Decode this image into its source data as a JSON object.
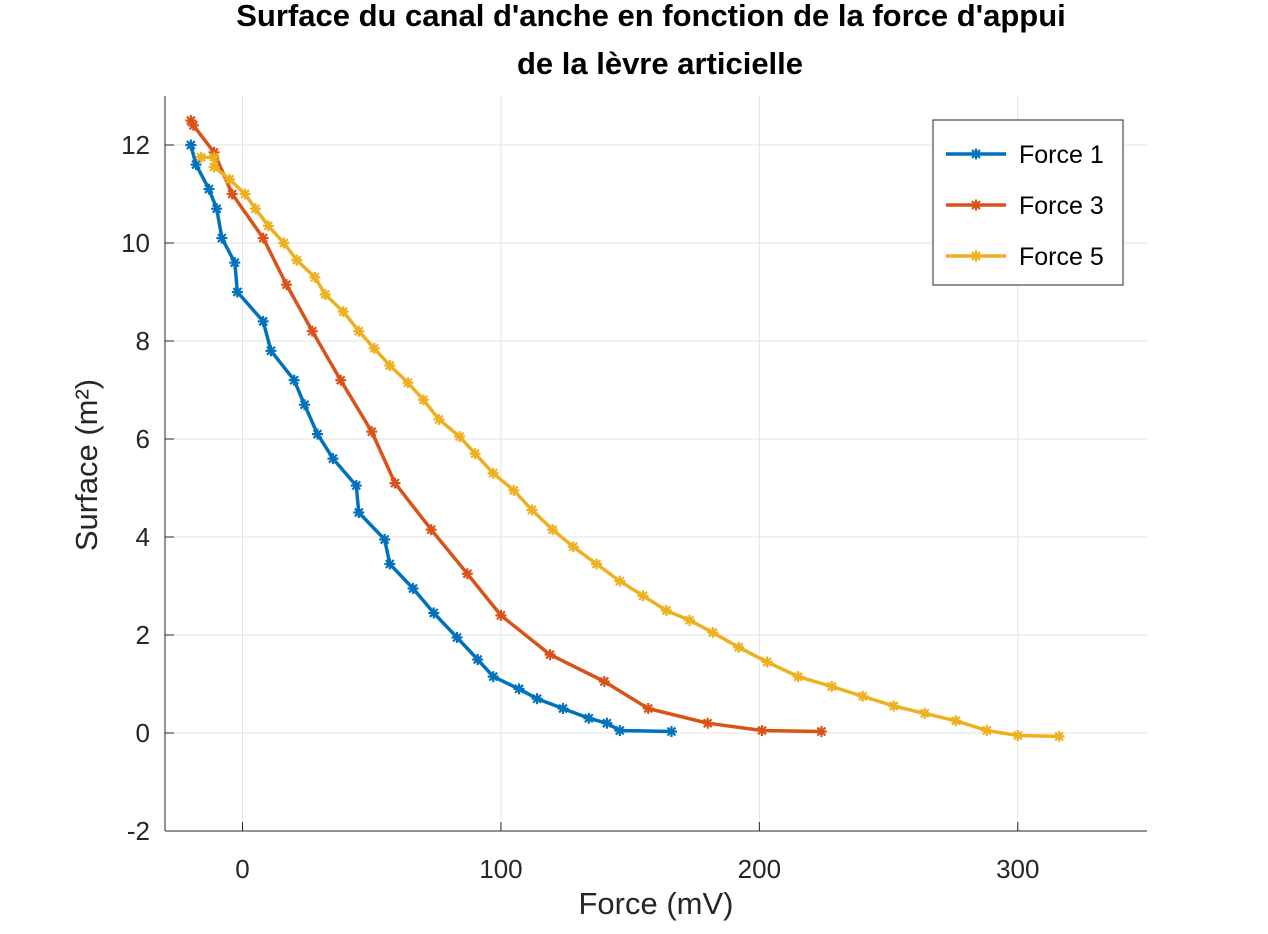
{
  "chart_data": {
    "type": "line",
    "title_lines": [
      "Surface du canal d'anche en fonction de la force d'appui",
      "de la lèvre articielle"
    ],
    "xlabel": "Force (mV)",
    "ylabel": "Surface (m²)",
    "xlim": [
      -30,
      350
    ],
    "ylim": [
      -2,
      13
    ],
    "xticks": [
      0,
      100,
      200,
      300
    ],
    "yticks": [
      -2,
      0,
      2,
      4,
      6,
      8,
      10,
      12
    ],
    "grid": true,
    "legend_position": "top-right",
    "series": [
      {
        "name": "Force 1",
        "color": "#0072BD",
        "marker": "asterisk",
        "x": [
          -20,
          -18,
          -13,
          -10,
          -8,
          -3,
          -2,
          8,
          11,
          20,
          24,
          29,
          35,
          44,
          45,
          55,
          57,
          66,
          74,
          83,
          91,
          97,
          107,
          114,
          124,
          134,
          141,
          146,
          166
        ],
        "y": [
          12.0,
          11.6,
          11.1,
          10.7,
          10.1,
          9.6,
          9.0,
          8.4,
          7.8,
          7.2,
          6.7,
          6.1,
          5.6,
          5.05,
          4.5,
          3.95,
          3.45,
          2.95,
          2.45,
          1.95,
          1.5,
          1.15,
          0.9,
          0.7,
          0.5,
          0.3,
          0.2,
          0.05,
          0.03
        ]
      },
      {
        "name": "Force 3",
        "color": "#D95319",
        "marker": "asterisk",
        "x": [
          -20,
          -19,
          -11,
          -4,
          8,
          17,
          27,
          38,
          50,
          59,
          73,
          87,
          100,
          119,
          140,
          157,
          180,
          201,
          224
        ],
        "y": [
          12.5,
          12.4,
          11.85,
          11.0,
          10.1,
          9.15,
          8.2,
          7.2,
          6.15,
          5.1,
          4.15,
          3.25,
          2.4,
          1.6,
          1.05,
          0.5,
          0.2,
          0.05,
          0.03
        ]
      },
      {
        "name": "Force 5",
        "color": "#EDB120",
        "marker": "asterisk",
        "x": [
          -16,
          -11,
          -11,
          -5,
          1,
          5,
          10,
          16,
          21,
          28,
          32,
          39,
          45,
          51,
          57,
          64,
          70,
          76,
          84,
          90,
          97,
          105,
          112,
          120,
          128,
          137,
          146,
          155,
          164,
          173,
          182,
          192,
          203,
          215,
          228,
          240,
          252,
          264,
          276,
          288,
          300,
          316
        ],
        "y": [
          11.75,
          11.75,
          11.55,
          11.3,
          11.0,
          10.7,
          10.35,
          10.0,
          9.65,
          9.3,
          8.95,
          8.6,
          8.2,
          7.85,
          7.5,
          7.15,
          6.8,
          6.4,
          6.05,
          5.7,
          5.3,
          4.95,
          4.55,
          4.15,
          3.8,
          3.45,
          3.1,
          2.8,
          2.5,
          2.3,
          2.05,
          1.75,
          1.45,
          1.15,
          0.95,
          0.75,
          0.55,
          0.4,
          0.25,
          0.05,
          -0.05,
          -0.07
        ]
      }
    ]
  }
}
